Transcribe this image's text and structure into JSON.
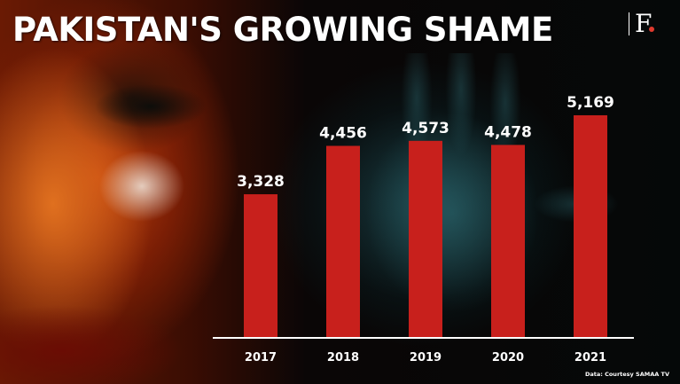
{
  "title": "PAKISTAN'S GROWING SHAME",
  "logo": "F",
  "credit": "Data: Courtesy SAMAA TV",
  "colors": {
    "bar": "#c8201c",
    "text": "#ffffff",
    "logo_dot": "#e03a2e"
  },
  "chart_data": {
    "type": "bar",
    "categories": [
      "2017",
      "2018",
      "2019",
      "2020",
      "2021"
    ],
    "values": [
      3328,
      4456,
      4573,
      4478,
      5169
    ],
    "data_labels": [
      "3,328",
      "4,456",
      "4,573",
      "4,478",
      "5,169"
    ],
    "title": "PAKISTAN'S GROWING SHAME",
    "xlabel": "",
    "ylabel": "",
    "grid": false,
    "legend": "none"
  }
}
